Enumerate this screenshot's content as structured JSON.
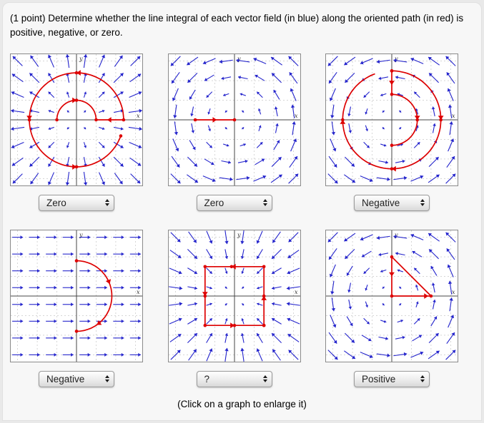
{
  "header": {
    "text": "(1 point) Determine whether the line integral of each vector field (in blue) along the oriented path (in red) is positive, negative, or zero."
  },
  "footer": {
    "text": "(Click on a graph to enlarge it)"
  },
  "colors": {
    "field_blue": "#2424cc",
    "path_red": "#dd0000",
    "grid": "#bdbdbd",
    "axis": "#444444",
    "plot_bg": "#ffffff",
    "plot_border": "#8a8a8a"
  },
  "dropdowns": [
    {
      "value": "Zero"
    },
    {
      "value": "Zero"
    },
    {
      "value": "Negative"
    },
    {
      "value": "Negative"
    },
    {
      "value": "?"
    },
    {
      "value": "Positive"
    }
  ],
  "chart_data": [
    {
      "type": "vector-field",
      "position": "row1-col1",
      "axis_labels": {
        "x": "x",
        "y": "y"
      },
      "field": {
        "type": "radial_outward",
        "description": "blue vectors point radially outward from the origin, growing with distance"
      },
      "path_description": "red concentric circular arcs centered at the origin (outer circle counterclockwise, inner upper semicircle clockwise) joined along the positive x-axis",
      "selected_answer": "Zero",
      "path": [
        {
          "t": "arc",
          "c": [
            0,
            0
          ],
          "r": 2.4,
          "a0": 0,
          "a1": 340,
          "dir": "ccw",
          "arrows": [
            90,
            180,
            270
          ],
          "dots": [
            0,
            90,
            180,
            270,
            340
          ]
        },
        {
          "t": "arc",
          "c": [
            0,
            0
          ],
          "r": 1.0,
          "a0": 180,
          "a1": 0,
          "dir": "cw",
          "arrows": [
            90
          ],
          "dots": [
            180,
            90,
            0
          ]
        },
        {
          "t": "line",
          "p1": [
            2.4,
            0
          ],
          "p2": [
            1.0,
            0
          ],
          "arrows": [
            0.6
          ],
          "dots": []
        }
      ]
    },
    {
      "type": "vector-field",
      "position": "row1-col2",
      "axis_labels": {
        "x": "x",
        "y": "y"
      },
      "field": {
        "type": "rotational_ccw",
        "description": "blue vectors circulate counterclockwise about the origin"
      },
      "path_description": "red straight segment along the negative x-axis from (-2,0) to the origin",
      "selected_answer": "Zero",
      "path": [
        {
          "t": "line",
          "p1": [
            -2,
            0
          ],
          "p2": [
            0,
            0
          ],
          "arrows": [
            0.55
          ],
          "dots": [
            0,
            1
          ]
        }
      ]
    },
    {
      "type": "vector-field",
      "position": "row1-col3",
      "axis_labels": {
        "x": "x",
        "y": "y"
      },
      "field": {
        "type": "rotational_ccw",
        "description": "blue vectors circulate counterclockwise about the origin"
      },
      "path_description": "red clockwise spiral: outer circle clockwise, radial step inward along the positive y-axis, inner right half-circle clockwise",
      "selected_answer": "Negative",
      "path": [
        {
          "t": "arc",
          "c": [
            0,
            0
          ],
          "r": 2.5,
          "a0": 90,
          "a1": -250,
          "dir": "cw",
          "arrows": [
            0,
            -90,
            -180
          ],
          "dots": [
            90,
            0,
            -90,
            -180
          ]
        },
        {
          "t": "line",
          "p1": [
            0,
            2.5
          ],
          "p2": [
            0,
            1.3
          ],
          "arrows": [
            0.6
          ],
          "dots": [
            0,
            1
          ]
        },
        {
          "t": "arc",
          "c": [
            0,
            0
          ],
          "r": 1.3,
          "a0": 90,
          "a1": -90,
          "dir": "cw",
          "arrows": [
            0
          ],
          "dots": [
            0,
            -90
          ]
        }
      ]
    },
    {
      "type": "vector-field",
      "position": "row2-col1",
      "axis_labels": {
        "x": "x",
        "y": "y"
      },
      "field": {
        "type": "uniform_right",
        "description": "blue vectors all point in the +x direction with equal length"
      },
      "path_description": "red right half-circle from (0,1.8) through (1.8,0) to (0,-1.8), traversed top to bottom",
      "selected_answer": "Negative",
      "path": [
        {
          "t": "arc",
          "c": [
            0,
            0
          ],
          "r": 1.8,
          "a0": 90,
          "a1": -90,
          "dir": "cw",
          "arrows": [
            20,
            -55
          ],
          "dots": [
            90,
            -90
          ]
        }
      ]
    },
    {
      "type": "vector-field",
      "position": "row2-col2",
      "axis_labels": {
        "x": "x",
        "y": "y"
      },
      "field": {
        "type": "radial_inward",
        "description": "blue vectors point radially inward toward the origin"
      },
      "path_description": "red square with corners at (±1.5, ±1.5) traversed counterclockwise",
      "selected_answer": "?",
      "path": [
        {
          "t": "line",
          "p1": [
            1.5,
            -1.5
          ],
          "p2": [
            1.5,
            1.5
          ],
          "arrows": [
            0.5
          ],
          "dots": [
            0,
            0.5,
            1
          ]
        },
        {
          "t": "line",
          "p1": [
            1.5,
            1.5
          ],
          "p2": [
            -1.5,
            1.5
          ],
          "arrows": [
            0.55
          ],
          "dots": [
            0.55,
            1
          ]
        },
        {
          "t": "line",
          "p1": [
            -1.5,
            1.5
          ],
          "p2": [
            -1.5,
            -1.5
          ],
          "arrows": [
            0.5
          ],
          "dots": [
            0.5,
            1
          ]
        },
        {
          "t": "line",
          "p1": [
            -1.5,
            -1.5
          ],
          "p2": [
            1.5,
            -1.5
          ],
          "arrows": [
            0.5
          ],
          "dots": [
            0.5,
            1
          ]
        }
      ]
    },
    {
      "type": "vector-field",
      "position": "row2-col3",
      "axis_labels": {
        "x": "x",
        "y": "y"
      },
      "field": {
        "type": "rotational_ccw",
        "description": "blue vectors circulate counterclockwise about the origin"
      },
      "path_description": "red triangle: down the y-axis from (0,2) to the origin, right along the x-axis to (2,0), hypotenuse back up to (0,2); traversed counterclockwise",
      "selected_answer": "Positive",
      "path": [
        {
          "t": "line",
          "p1": [
            0,
            2
          ],
          "p2": [
            0,
            0
          ],
          "arrows": [
            0.5
          ],
          "dots": [
            0,
            1
          ]
        },
        {
          "t": "line",
          "p1": [
            0,
            0
          ],
          "p2": [
            2,
            0
          ],
          "arrows": [
            0.93
          ],
          "dots": [
            1
          ]
        },
        {
          "t": "line",
          "p1": [
            2,
            0
          ],
          "p2": [
            0,
            2
          ],
          "arrows": [],
          "dots": []
        }
      ]
    }
  ]
}
